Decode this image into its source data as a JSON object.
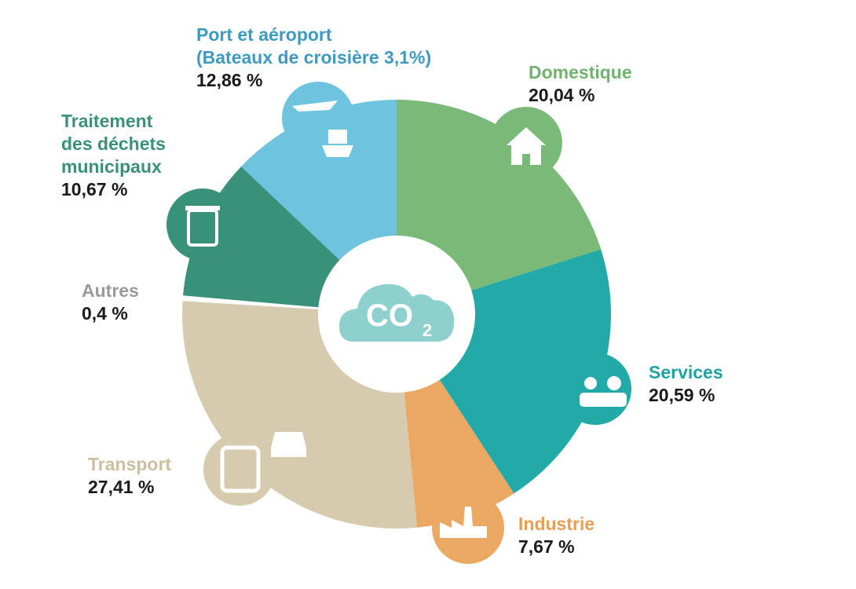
{
  "chart_data": {
    "type": "pie",
    "categories": [
      "Domestique",
      "Services",
      "Industrie",
      "Transport",
      "Autres",
      "Traitement\ndes déchets\nmunicipaux",
      "Port et aéroport\n(Bateaux de croisière  3,1%)"
    ],
    "values": [
      20.04,
      20.59,
      7.67,
      27.41,
      0.4,
      10.67,
      12.86
    ],
    "value_labels": [
      "20,04 %",
      "20,59 %",
      "7,67 %",
      "27,41 %",
      "0,4 %",
      "10,67 %",
      "12,86 %"
    ],
    "colors": [
      "#7ab977",
      "#22aaa8",
      "#eaa862",
      "#d6cbae",
      "#ffffff",
      "#3a9179",
      "#6ec3de"
    ],
    "label_colors": [
      "#6fb36d",
      "#1fa3a1",
      "#e59f55",
      "#cbbf9f",
      "#9a9a9a",
      "#3a9179",
      "#3d9bc0"
    ],
    "center_label": [
      "CO",
      "2"
    ]
  }
}
